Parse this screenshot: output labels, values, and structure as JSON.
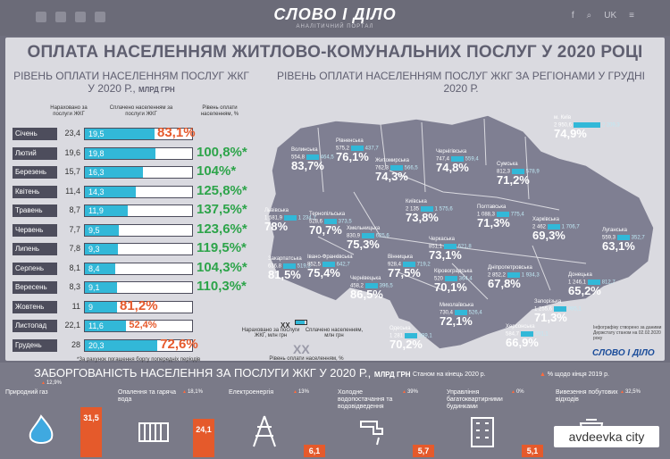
{
  "header": {
    "logo": "СЛОВО І ДІЛО",
    "tagline": "АНАЛІТИЧНИЙ ПОРТАЛ",
    "lang": "UK"
  },
  "infographic": {
    "title": "ОПЛАТА НАСЕЛЕННЯМ ЖИТЛОВО-КОМУНАЛЬНИХ ПОСЛУГ У 2020 РОЦІ",
    "left_subtitle": "РІВЕНЬ ОПЛАТИ НАСЕЛЕННЯМ ПОСЛУГ ЖКГ У 2020 Р.,",
    "left_unit": "МЛРД ГРН",
    "right_subtitle": "РІВЕНЬ ОПЛАТИ НАСЕЛЕННЯМ ПОСЛУГ ЖКГ ЗА РЕГІОНАМИ У ГРУДНІ 2020 Р.",
    "col_accrued": "Нараховано за послуги ЖКГ",
    "col_paid": "Сплачено населенням за послуги ЖКГ",
    "col_level": "Рівень оплати населенням, %",
    "footnote": "*За рахунок погашення боргу попередніх періодів",
    "legend_xx": "ХХ",
    "legend_accrued": "Нараховано за послуги ЖКГ, млн грн",
    "legend_paid": "Сплачено населенням, млн грн",
    "legend_level": "Рівень оплати населенням, %",
    "note": "Інфографіку створено за даними Держстату станом на 02.02.2020 року",
    "brand2": "СЛОВО І ДІЛО"
  },
  "chart_data": [
    {
      "type": "bar",
      "title": "РІВЕНЬ ОПЛАТИ НАСЕЛЕННЯМ ПОСЛУГ ЖКГ У 2020 Р., МЛРД ГРН",
      "categories": [
        "Січень",
        "Лютий",
        "Березень",
        "Квітень",
        "Травень",
        "Червень",
        "Липень",
        "Серпень",
        "Вересень",
        "Жовтень",
        "Листопад",
        "Грудень"
      ],
      "series": [
        {
          "name": "Нараховано за послуги ЖКГ",
          "values": [
            23.4,
            19.6,
            15.7,
            11.4,
            8.7,
            7.7,
            7.8,
            8.1,
            8.3,
            11,
            22.1,
            28
          ]
        },
        {
          "name": "Сплачено населенням за послуги ЖКГ",
          "values": [
            19.5,
            19.8,
            16.3,
            14.3,
            11.9,
            9.5,
            9.3,
            8.4,
            9.1,
            9,
            11.6,
            20.3
          ]
        },
        {
          "name": "Рівень оплати населенням, %",
          "values": [
            83.1,
            100.8,
            104,
            125.8,
            137.5,
            123.6,
            119.5,
            104.3,
            110.3,
            81.2,
            52.4,
            72.6
          ]
        }
      ],
      "level_labels": [
        "83,1%",
        "100,8%*",
        "104%*",
        "125,8%*",
        "137,5%*",
        "123,6%*",
        "119,5%*",
        "104,3%*",
        "110,3%*",
        "81,2%",
        "52,4%",
        "72,6%"
      ],
      "accrued_labels": [
        "23,4",
        "19,6",
        "15,7",
        "11,4",
        "8,7",
        "7,7",
        "7,8",
        "8,1",
        "8,3",
        "11",
        "22,1",
        "28"
      ],
      "paid_labels": [
        "19,5",
        "19,8",
        "16,3",
        "14,3",
        "11,9",
        "9,5",
        "9,3",
        "8,4",
        "9,1",
        "9",
        "11,6",
        "20,3"
      ]
    },
    {
      "type": "table",
      "title": "РІВЕНЬ ОПЛАТИ НАСЕЛЕННЯМ ПОСЛУГ ЖКГ ЗА РЕГІОНАМИ У ГРУДНІ 2020 Р.",
      "regions": [
        {
          "name": "Волинська",
          "accrued": "554,8",
          "paid": "464,5",
          "level": "83,7%"
        },
        {
          "name": "Рівненська",
          "accrued": "575,2",
          "paid": "437,7",
          "level": "76,1%"
        },
        {
          "name": "Житомирська",
          "accrued": "762,3",
          "paid": "566,5",
          "level": "74,3%"
        },
        {
          "name": "Чернігівська",
          "accrued": "747,4",
          "paid": "559,4",
          "level": "74,8%"
        },
        {
          "name": "Сумська",
          "accrued": "812,3",
          "paid": "578,9",
          "level": "71,2%"
        },
        {
          "name": "м. Київ",
          "accrued": "2 950,6",
          "paid": "2 209,3",
          "level": "74,9%"
        },
        {
          "name": "Київська",
          "accrued": "2 135",
          "paid": "1 575,6",
          "level": "73,8%"
        },
        {
          "name": "Львівська",
          "accrued": "1 581,9",
          "paid": "1 234,1",
          "level": "78%"
        },
        {
          "name": "Тернопільська",
          "accrued": "528,6",
          "paid": "373,5",
          "level": "70,7%"
        },
        {
          "name": "Хмельницька",
          "accrued": "830,9",
          "paid": "625,6",
          "level": "75,3%"
        },
        {
          "name": "Полтавська",
          "accrued": "1 088,3",
          "paid": "775,4",
          "level": "71,3%"
        },
        {
          "name": "Харківська",
          "accrued": "2 462",
          "paid": "1 706,7",
          "level": "69,3%"
        },
        {
          "name": "Луганська",
          "accrued": "559,3",
          "paid": "352,7",
          "level": "63,1%"
        },
        {
          "name": "Закарпатська",
          "accrued": "636,8",
          "paid": "519,3",
          "level": "81,5%"
        },
        {
          "name": "Івано-Франківська",
          "accrued": "852,5",
          "paid": "642,7",
          "level": "75,4%"
        },
        {
          "name": "Чернівецька",
          "accrued": "458,2",
          "paid": "396,5",
          "level": "86,5%"
        },
        {
          "name": "Вінницька",
          "accrued": "928,4",
          "paid": "719,2",
          "level": "77,5%"
        },
        {
          "name": "Черкаська",
          "accrued": "851,1",
          "paid": "621,8",
          "level": "73,1%"
        },
        {
          "name": "Кіровоградська",
          "accrued": "520",
          "paid": "364,4",
          "level": "70,1%"
        },
        {
          "name": "Дніпропетровська",
          "accrued": "2 852,2",
          "paid": "1 934,3",
          "level": "67,8%"
        },
        {
          "name": "Донецька",
          "accrued": "1 246,1",
          "paid": "812,7",
          "level": "65,2%"
        },
        {
          "name": "Запорізька",
          "accrued": "1 255,6",
          "paid": "895,1",
          "level": "71,3%"
        },
        {
          "name": "Миколаївська",
          "accrued": "730,4",
          "paid": "526,4",
          "level": "72,1%"
        },
        {
          "name": "Херсонська",
          "accrued": "584,7",
          "paid": "391,1",
          "level": "66,9%"
        },
        {
          "name": "Одеська",
          "accrued": "1 281",
          "paid": "899,1",
          "level": "70,2%"
        }
      ]
    },
    {
      "type": "bar",
      "title": "ЗАБОРГОВАНІСТЬ НАСЕЛЕННЯ ЗА ПОСЛУГИ ЖКГ У 2020 Р., МЛРД ГРН",
      "categories": [
        "Природний газ",
        "Опалення та гаряча вода",
        "Електроенергія",
        "Холодне водопостачання та водовідведення",
        "Управління багатоквартирними будинками",
        "Вивезення побутових відходів"
      ],
      "values": [
        31.5,
        24.1,
        6.1,
        5.7,
        5.1,
        null
      ],
      "value_labels": [
        "31,5",
        "24,1",
        "6,1",
        "5,7",
        "5,1",
        ""
      ],
      "change_labels": [
        "12,9%",
        "18,1%",
        "13%",
        "39%",
        "0%",
        "32,5%"
      ]
    }
  ],
  "debt": {
    "title": "ЗАБОРГОВАНІСТЬ НАСЕЛЕННЯ ЗА ПОСЛУГИ ЖКГ У 2020 Р.,",
    "unit": "МЛРД ГРН",
    "as_of": "Станом на кінець 2020 р.",
    "legend": "% щодо кінця 2019 р."
  },
  "watermark": "avdeevka city"
}
